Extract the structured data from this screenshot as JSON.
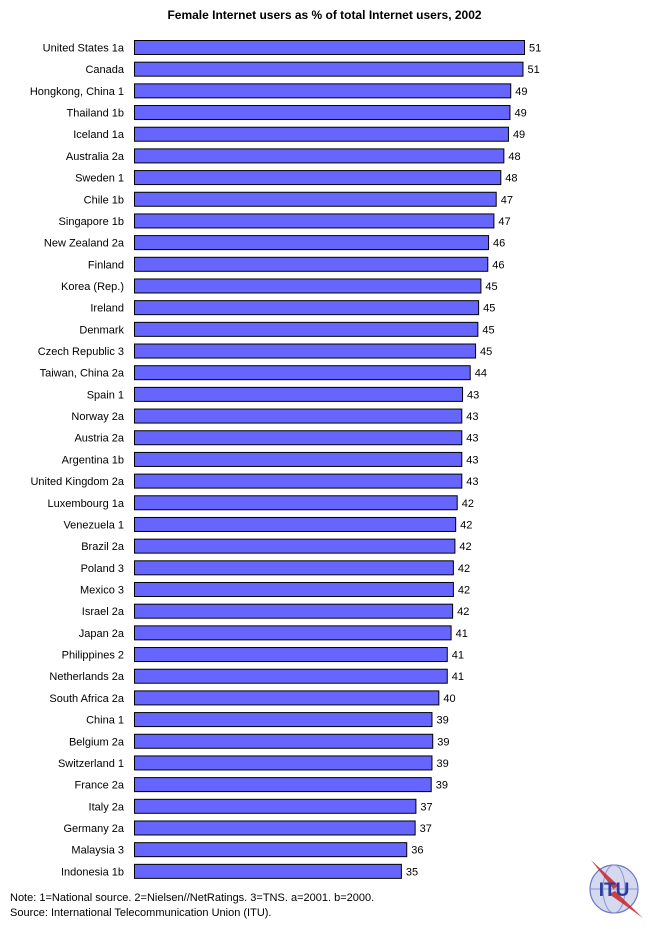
{
  "chart_data": {
    "type": "bar",
    "orientation": "horizontal",
    "title": "Female Internet users as % of total Internet users, 2002",
    "xlim": [
      0,
      51
    ],
    "grid": false,
    "bar_color": "#6666ff",
    "bar_edge_color": "#000000",
    "categories": [
      "United States 1a",
      "Canada",
      "Hongkong, China 1",
      "Thailand 1b",
      "Iceland 1a",
      "Australia 2a",
      "Sweden 1",
      "Chile 1b",
      "Singapore 1b",
      "New Zealand 2a",
      "Finland",
      "Korea (Rep.)",
      "Ireland",
      "Denmark",
      "Czech Republic 3",
      "Taiwan, China 2a",
      "Spain 1",
      "Norway 2a",
      "Austria 2a",
      "Argentina 1b",
      "United Kingdom 2a",
      "Luxembourg 1a",
      "Venezuela 1",
      "Brazil 2a",
      "Poland 3",
      "Mexico 3",
      "Israel 2a",
      "Japan 2a",
      "Philippines 2",
      "Netherlands 2a",
      "South Africa 2a",
      "China 1",
      "Belgium 2a",
      "Switzerland 1",
      "France 2a",
      "Italy 2a",
      "Germany 2a",
      "Malaysia 3",
      "Indonesia 1b"
    ],
    "values": [
      51,
      51,
      49,
      49,
      49,
      48,
      48,
      47,
      47,
      46,
      46,
      45,
      45,
      45,
      45,
      44,
      43,
      43,
      43,
      43,
      43,
      42,
      42,
      42,
      42,
      42,
      42,
      41,
      41,
      41,
      40,
      39,
      39,
      39,
      39,
      37,
      37,
      36,
      35
    ],
    "exact_values": [
      51.0,
      50.8,
      49.2,
      49.1,
      48.9,
      48.3,
      47.9,
      47.3,
      47.0,
      46.3,
      46.2,
      45.3,
      45.0,
      44.9,
      44.6,
      43.9,
      42.9,
      42.8,
      42.8,
      42.8,
      42.8,
      42.2,
      42.0,
      41.9,
      41.7,
      41.7,
      41.6,
      41.4,
      40.9,
      40.9,
      39.8,
      38.9,
      39.0,
      38.9,
      38.8,
      36.8,
      36.7,
      35.6,
      34.9
    ]
  },
  "footer": {
    "note": "Note: 1=National source. 2=Nielsen//NetRatings. 3=TNS.  a=2001. b=2000.",
    "source": "Source: International Telecommunication Union (ITU)."
  },
  "logo": {
    "text": "ITU",
    "color": "#2a3d9e",
    "accent_color": "#cc2222"
  }
}
